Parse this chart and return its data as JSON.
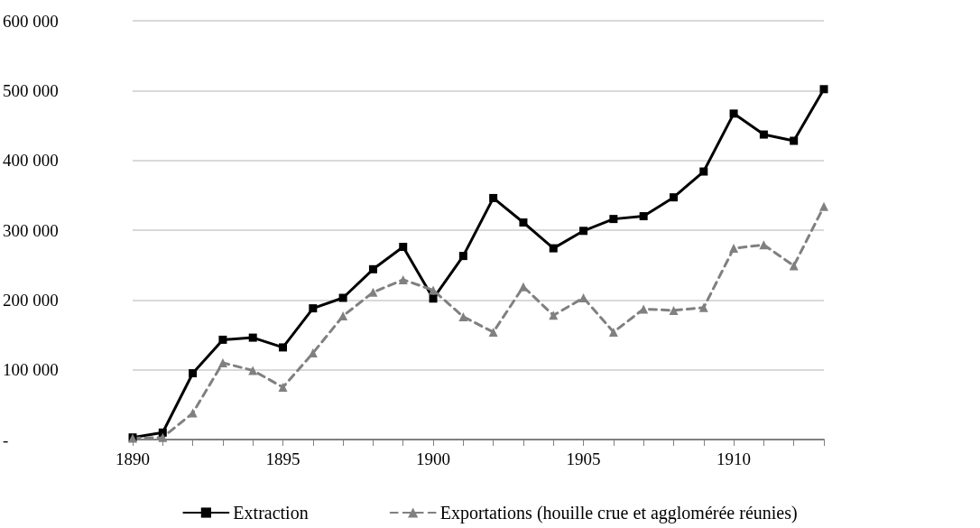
{
  "chart_data": {
    "type": "line",
    "x": [
      1890,
      1891,
      1892,
      1893,
      1894,
      1895,
      1896,
      1897,
      1898,
      1899,
      1900,
      1901,
      1902,
      1903,
      1904,
      1905,
      1906,
      1907,
      1908,
      1909,
      1910,
      1911,
      1912,
      1913
    ],
    "series": [
      {
        "name": "Extraction",
        "color": "#000000",
        "marker": "square",
        "line_style": "solid",
        "values": [
          3000,
          10000,
          95000,
          143000,
          146000,
          132000,
          188000,
          203000,
          244000,
          276000,
          202000,
          263000,
          346000,
          311000,
          274000,
          299000,
          316000,
          320000,
          347000,
          384000,
          467000,
          437000,
          428000,
          502000
        ]
      },
      {
        "name": "Exportations (houille crue et agglomérée réunies)",
        "color": "#808080",
        "marker": "triangle",
        "line_style": "dashed",
        "values": [
          2000,
          3000,
          38000,
          110000,
          99000,
          75000,
          124000,
          177000,
          211000,
          229000,
          214000,
          176000,
          154000,
          219000,
          178000,
          203000,
          154000,
          187000,
          185000,
          189000,
          274000,
          279000,
          249000,
          334000
        ]
      }
    ],
    "xlim": [
      1890,
      1913
    ],
    "xticks": [
      1890,
      {
        "value": 1891,
        "label": null
      },
      {
        "value": 1892,
        "label": null
      },
      {
        "value": 1893,
        "label": null
      },
      {
        "value": 1894,
        "label": null
      },
      1895,
      {
        "value": 1896,
        "label": null
      },
      {
        "value": 1897,
        "label": null
      },
      {
        "value": 1898,
        "label": null
      },
      {
        "value": 1899,
        "label": null
      },
      1900,
      {
        "value": 1901,
        "label": null
      },
      {
        "value": 1902,
        "label": null
      },
      {
        "value": 1903,
        "label": null
      },
      {
        "value": 1904,
        "label": null
      },
      1905,
      {
        "value": 1906,
        "label": null
      },
      {
        "value": 1907,
        "label": null
      },
      {
        "value": 1908,
        "label": null
      },
      {
        "value": 1909,
        "label": null
      },
      1910,
      {
        "value": 1911,
        "label": null
      },
      {
        "value": 1912,
        "label": null
      },
      {
        "value": 1913,
        "label": null
      }
    ],
    "ylim": [
      0,
      600000
    ],
    "yticks": [
      {
        "value": 0,
        "label": "-"
      },
      {
        "value": 100000,
        "label": "100 000"
      },
      {
        "value": 200000,
        "label": "200 000"
      },
      {
        "value": 300000,
        "label": "300 000"
      },
      {
        "value": 400000,
        "label": "400 000"
      },
      {
        "value": 500000,
        "label": "500 000"
      },
      {
        "value": 600000,
        "label": "600 000"
      }
    ],
    "grid": "y",
    "legend": "bottom"
  }
}
